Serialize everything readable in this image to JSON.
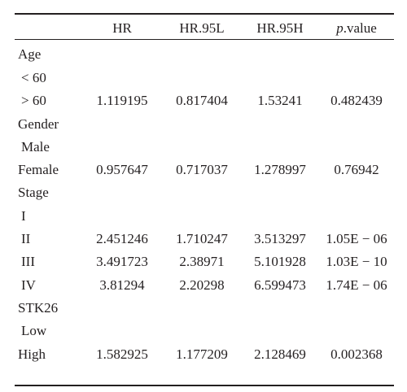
{
  "table": {
    "headers": {
      "label": "",
      "hr": "HR",
      "hr95l": "HR.95L",
      "hr95h": "HR.95H",
      "p_prefix": "p",
      "p_suffix": ".value"
    },
    "rows": [
      {
        "label": "Age",
        "hr": "",
        "l": "",
        "h": "",
        "p": ""
      },
      {
        "label": "< 60",
        "hr": "",
        "l": "",
        "h": "",
        "p": ""
      },
      {
        "label": "> 60",
        "hr": "1.119195",
        "l": "0.817404",
        "h": "1.53241",
        "p": "0.482439"
      },
      {
        "label": "Gender",
        "hr": "",
        "l": "",
        "h": "",
        "p": ""
      },
      {
        "label": "Male",
        "hr": "",
        "l": "",
        "h": "",
        "p": ""
      },
      {
        "label": "Female",
        "hr": "0.957647",
        "l": "0.717037",
        "h": "1.278997",
        "p": "0.76942"
      },
      {
        "label": "Stage",
        "hr": "",
        "l": "",
        "h": "",
        "p": ""
      },
      {
        "label": "I",
        "hr": "",
        "l": "",
        "h": "",
        "p": ""
      },
      {
        "label": "II",
        "hr": "2.451246",
        "l": "1.710247",
        "h": "3.513297",
        "p": "1.05E − 06"
      },
      {
        "label": "III",
        "hr": "3.491723",
        "l": "2.38971",
        "h": "5.101928",
        "p": "1.03E − 10"
      },
      {
        "label": "IV",
        "hr": "3.81294",
        "l": "2.20298",
        "h": "6.599473",
        "p": "1.74E − 06"
      },
      {
        "label": "STK26",
        "hr": "",
        "l": "",
        "h": "",
        "p": ""
      },
      {
        "label": "Low",
        "hr": "",
        "l": "",
        "h": "",
        "p": ""
      },
      {
        "label": "High",
        "hr": "1.582925",
        "l": "1.177209",
        "h": "2.128469",
        "p": "0.002368"
      }
    ]
  }
}
